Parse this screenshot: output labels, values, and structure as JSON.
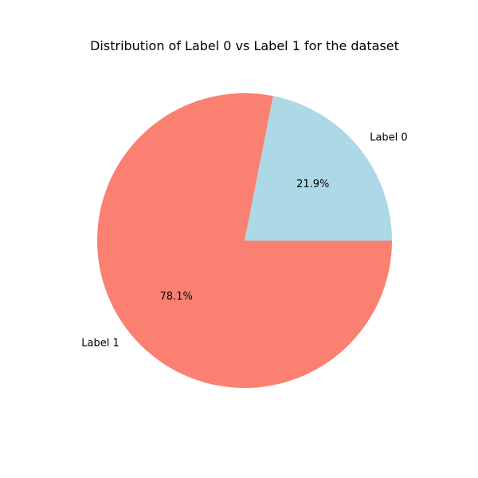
{
  "chart_data": {
    "type": "pie",
    "title": "Distribution of Label 0 vs Label 1 for the dataset",
    "categories": [
      "Label 0",
      "Label 1"
    ],
    "values": [
      21.9,
      78.1
    ],
    "percent_labels": [
      "21.9%",
      "78.1%"
    ],
    "colors": [
      "#add8e6",
      "#fa8072"
    ],
    "start_angle_deg": 0,
    "direction": "counterclockwise",
    "legend": "none"
  }
}
